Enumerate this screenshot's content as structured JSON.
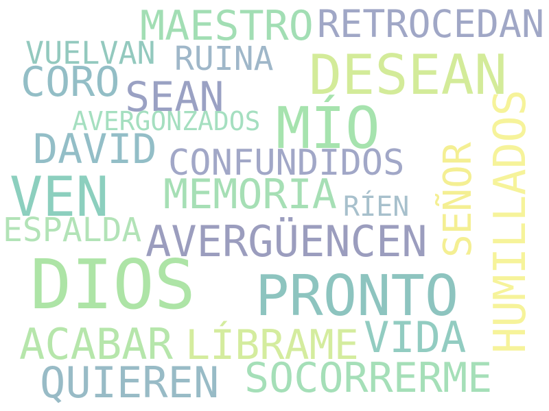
{
  "words": [
    {
      "text": "MAESTRO",
      "color": "#a2deb4"
    },
    {
      "text": "RETROCEDAN",
      "color": "#a0a7c6"
    },
    {
      "text": "VUELVAN",
      "color": "#93c9be"
    },
    {
      "text": "RUINA",
      "color": "#9fb7c9"
    },
    {
      "text": "DESEAN",
      "color": "#d3eb99"
    },
    {
      "text": "CORO",
      "color": "#93bec6"
    },
    {
      "text": "SEAN",
      "color": "#9aa1c3"
    },
    {
      "text": "AVERGONZADOS",
      "color": "#a5dfc0"
    },
    {
      "text": "MÍO",
      "color": "#a6e3ae"
    },
    {
      "text": "DAVID",
      "color": "#93bec7"
    },
    {
      "text": "CONFUNDIDOS",
      "color": "#a1a7c7"
    },
    {
      "text": "SEÑOR",
      "color": "#f4ef93"
    },
    {
      "text": "HUMILLADOS",
      "color": "#f6f39a"
    },
    {
      "text": "VEN",
      "color": "#8ccfbe"
    },
    {
      "text": "MEMORIA",
      "color": "#a6dfb5"
    },
    {
      "text": "RÍEN",
      "color": "#a7c0cc"
    },
    {
      "text": "ESPALDA",
      "color": "#b2e3b7"
    },
    {
      "text": "AVERGÜENCEN",
      "color": "#9b9dbe"
    },
    {
      "text": "DIOS",
      "color": "#ade4a6"
    },
    {
      "text": "PRONTO",
      "color": "#8dc4bf"
    },
    {
      "text": "VIDA",
      "color": "#92ccc1"
    },
    {
      "text": "ACABAR",
      "color": "#b6e6ab"
    },
    {
      "text": "LÍBRAME",
      "color": "#d4ec9e"
    },
    {
      "text": "QUIEREN",
      "color": "#98bbc6"
    },
    {
      "text": "SOCORRERME",
      "color": "#a5dfb8"
    }
  ]
}
